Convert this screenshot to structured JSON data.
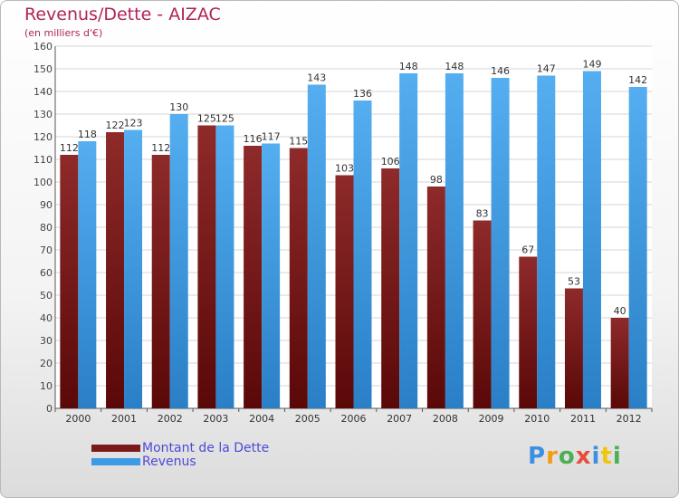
{
  "chart_data": {
    "type": "bar",
    "title": "Revenus/Dette - AIZAC",
    "subtitle": "(en milliers d'€)",
    "categories": [
      "2000",
      "2001",
      "2002",
      "2003",
      "2004",
      "2005",
      "2006",
      "2007",
      "2008",
      "2009",
      "2010",
      "2011",
      "2012"
    ],
    "series": [
      {
        "name": "Montant de la Dette",
        "color": "#7a1a1a",
        "values": [
          112,
          122,
          112,
          125,
          116,
          115,
          103,
          106,
          98,
          83,
          67,
          53,
          40
        ]
      },
      {
        "name": "Revenus",
        "color": "#3d9be6",
        "values": [
          118,
          123,
          130,
          125,
          117,
          143,
          136,
          148,
          148,
          146,
          147,
          149,
          142
        ]
      }
    ],
    "ylim": [
      0,
      160
    ],
    "ytick_step": 10,
    "grid": true,
    "legend_position": "bottom-left"
  },
  "legend": {
    "items": [
      {
        "label": "Montant de la Dette",
        "color": "#7a1a1a"
      },
      {
        "label": "Revenus",
        "color": "#3d9be6"
      }
    ]
  },
  "logo": {
    "letters": [
      "P",
      "r",
      "o",
      "x",
      "i",
      "t",
      "i"
    ],
    "colors": [
      "#3d8fe0",
      "#f39c12",
      "#4caf50",
      "#e74c3c",
      "#3d8fe0",
      "#f1c40f",
      "#4caf50"
    ]
  }
}
